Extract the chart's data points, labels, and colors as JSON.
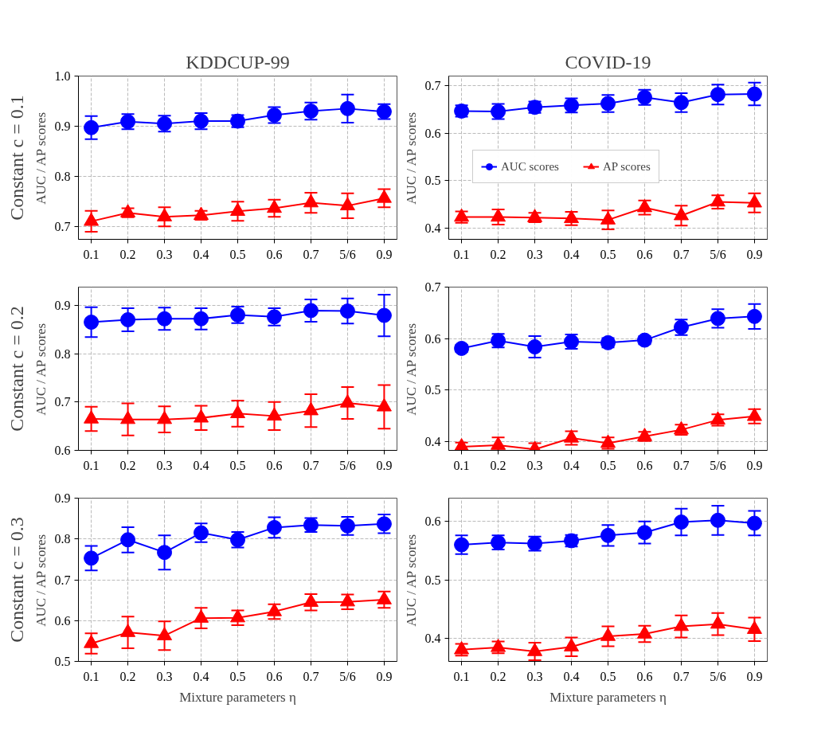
{
  "chart_data": [
    {
      "type": "line",
      "title": "KDDCUP-99",
      "ylabel": "AUC / AP scores",
      "annotations": [
        "Constant c = 0.1"
      ],
      "categories": [
        "0.1",
        "0.2",
        "0.3",
        "0.4",
        "0.5",
        "0.6",
        "0.7",
        "5/6",
        "0.9"
      ],
      "ylim": [
        0.674,
        1.0
      ],
      "yticks": [
        0.7,
        0.8,
        0.9,
        {
          "value": 1.0,
          "label": "1.0"
        }
      ],
      "grid": true,
      "series": [
        {
          "color": "#0000ff",
          "marker": "circle",
          "values": [
            0.897,
            0.909,
            0.905,
            0.91,
            0.91,
            0.922,
            0.93,
            0.935,
            0.929
          ],
          "errors": [
            0.023,
            0.015,
            0.016,
            0.016,
            0.012,
            0.016,
            0.017,
            0.028,
            0.015
          ]
        },
        {
          "color": "#ff0000",
          "marker": "triangle",
          "values": [
            0.71,
            0.727,
            0.719,
            0.722,
            0.73,
            0.736,
            0.747,
            0.741,
            0.756
          ],
          "errors": [
            0.021,
            0.009,
            0.019,
            0.009,
            0.019,
            0.017,
            0.02,
            0.025,
            0.018
          ]
        }
      ]
    },
    {
      "type": "line",
      "title": "COVID-19",
      "ylabel": "AUC / AP scores",
      "categories": [
        "0.1",
        "0.2",
        "0.3",
        "0.4",
        "0.5",
        "0.6",
        "0.7",
        "5/6",
        "0.9"
      ],
      "ylim": [
        0.376,
        0.721
      ],
      "yticks": [
        0.4,
        0.5,
        0.6,
        0.7
      ],
      "grid": true,
      "legend": "center",
      "series": [
        {
          "name": "AUC scores",
          "color": "#0000ff",
          "marker": "circle",
          "values": [
            0.647,
            0.646,
            0.655,
            0.659,
            0.663,
            0.676,
            0.665,
            0.682,
            0.683
          ],
          "errors": [
            0.012,
            0.016,
            0.012,
            0.015,
            0.018,
            0.016,
            0.02,
            0.021,
            0.024
          ]
        },
        {
          "name": "AP scores",
          "color": "#ff0000",
          "marker": "triangle",
          "values": [
            0.423,
            0.423,
            0.422,
            0.42,
            0.417,
            0.443,
            0.426,
            0.455,
            0.453
          ],
          "errors": [
            0.012,
            0.016,
            0.01,
            0.014,
            0.02,
            0.015,
            0.021,
            0.014,
            0.02
          ]
        }
      ]
    },
    {
      "type": "line",
      "ylabel": "AUC / AP scores",
      "annotations": [
        "Constant c = 0.2"
      ],
      "categories": [
        "0.1",
        "0.2",
        "0.3",
        "0.4",
        "0.5",
        "0.6",
        "0.7",
        "5/6",
        "0.9"
      ],
      "ylim": [
        0.6,
        0.9375
      ],
      "yticks": [
        0.6,
        0.7,
        0.8,
        0.9
      ],
      "grid": true,
      "series": [
        {
          "color": "#0000ff",
          "marker": "circle",
          "values": [
            0.865,
            0.87,
            0.872,
            0.872,
            0.88,
            0.876,
            0.889,
            0.888,
            0.879
          ],
          "errors": [
            0.031,
            0.024,
            0.023,
            0.022,
            0.017,
            0.018,
            0.023,
            0.026,
            0.043
          ]
        },
        {
          "color": "#ff0000",
          "marker": "triangle",
          "values": [
            0.665,
            0.664,
            0.664,
            0.667,
            0.676,
            0.671,
            0.682,
            0.698,
            0.69
          ],
          "errors": [
            0.025,
            0.033,
            0.027,
            0.025,
            0.027,
            0.029,
            0.034,
            0.033,
            0.045
          ]
        }
      ]
    },
    {
      "type": "line",
      "ylabel": "AUC / AP scores",
      "categories": [
        "0.1",
        "0.2",
        "0.3",
        "0.4",
        "0.5",
        "0.6",
        "0.7",
        "5/6",
        "0.9"
      ],
      "ylim": [
        0.383,
        0.7
      ],
      "yticks": [
        0.4,
        0.5,
        0.6,
        0.7
      ],
      "grid": true,
      "series": [
        {
          "color": "#0000ff",
          "marker": "circle",
          "values": [
            0.581,
            0.596,
            0.584,
            0.594,
            0.592,
            0.597,
            0.622,
            0.639,
            0.643
          ],
          "errors": [
            0.007,
            0.013,
            0.021,
            0.014,
            0.009,
            0.008,
            0.015,
            0.018,
            0.024
          ]
        },
        {
          "color": "#ff0000",
          "marker": "triangle",
          "values": [
            0.39,
            0.393,
            0.385,
            0.407,
            0.397,
            0.41,
            0.423,
            0.442,
            0.449
          ],
          "errors": [
            0.008,
            0.015,
            0.012,
            0.013,
            0.011,
            0.009,
            0.01,
            0.011,
            0.014
          ]
        }
      ]
    },
    {
      "type": "line",
      "xlabel": "Mixture parameters η",
      "ylabel": "AUC / AP scores",
      "annotations": [
        "Constant c = 0.3"
      ],
      "categories": [
        "0.1",
        "0.2",
        "0.3",
        "0.4",
        "0.5",
        "0.6",
        "0.7",
        "5/6",
        "0.9"
      ],
      "ylim": [
        0.5,
        0.9
      ],
      "yticks": [
        0.5,
        0.6,
        0.7,
        0.8,
        0.9
      ],
      "grid": true,
      "series": [
        {
          "color": "#0000ff",
          "marker": "circle",
          "values": [
            0.753,
            0.798,
            0.767,
            0.815,
            0.798,
            0.828,
            0.834,
            0.832,
            0.837
          ],
          "errors": [
            0.03,
            0.031,
            0.042,
            0.023,
            0.019,
            0.025,
            0.017,
            0.022,
            0.023
          ]
        },
        {
          "color": "#ff0000",
          "marker": "triangle",
          "values": [
            0.544,
            0.571,
            0.563,
            0.606,
            0.607,
            0.622,
            0.645,
            0.646,
            0.651
          ],
          "errors": [
            0.025,
            0.039,
            0.035,
            0.025,
            0.018,
            0.018,
            0.02,
            0.018,
            0.02
          ]
        }
      ]
    },
    {
      "type": "line",
      "xlabel": "Mixture parameters η",
      "ylabel": "AUC / AP scores",
      "categories": [
        "0.1",
        "0.2",
        "0.3",
        "0.4",
        "0.5",
        "0.6",
        "0.7",
        "5/6",
        "0.9"
      ],
      "ylim": [
        0.36,
        0.64
      ],
      "yticks": [
        0.4,
        0.5,
        0.6
      ],
      "grid": true,
      "series": [
        {
          "color": "#0000ff",
          "marker": "circle",
          "values": [
            0.56,
            0.564,
            0.562,
            0.567,
            0.576,
            0.581,
            0.599,
            0.602,
            0.597
          ],
          "errors": [
            0.016,
            0.012,
            0.012,
            0.01,
            0.018,
            0.019,
            0.023,
            0.025,
            0.021
          ]
        },
        {
          "color": "#ff0000",
          "marker": "triangle",
          "values": [
            0.38,
            0.384,
            0.377,
            0.385,
            0.403,
            0.407,
            0.42,
            0.424,
            0.415
          ],
          "errors": [
            0.01,
            0.01,
            0.015,
            0.016,
            0.017,
            0.014,
            0.019,
            0.019,
            0.02
          ]
        }
      ]
    }
  ]
}
